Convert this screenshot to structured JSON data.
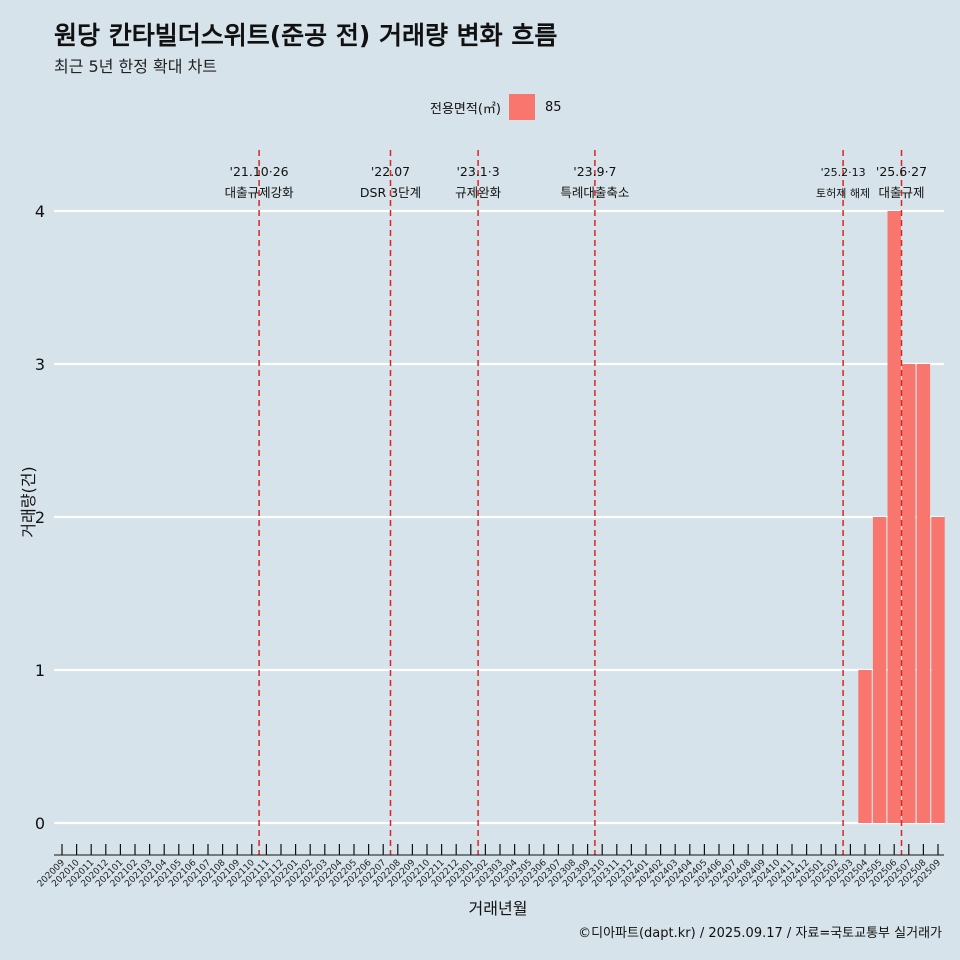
{
  "header": {
    "title": "원당 칸타빌더스위트(준공 전) 거래량 변화 흐름",
    "subtitle": "최근 5년 한정 확대 차트"
  },
  "legend": {
    "title": "전용면적(㎡)",
    "entry": "85",
    "color": "#f8766d"
  },
  "footer": {
    "credit": "©디아파트(dapt.kr) / 2025.09.17 / 자료=국토교통부 실거래가"
  },
  "chart_data": {
    "type": "bar",
    "title": "원당 칸타빌더스위트(준공 전) 거래량 변화 흐름",
    "xlabel": "거래년월",
    "ylabel": "거래량(건)",
    "ylim": [
      0,
      4
    ],
    "yticks": [
      0,
      1,
      2,
      3,
      4
    ],
    "grid": true,
    "legend_position": "top",
    "series_name": "85",
    "bar_color": "#f8766d",
    "categories": [
      "202009",
      "202010",
      "202011",
      "202012",
      "202101",
      "202102",
      "202103",
      "202104",
      "202105",
      "202106",
      "202107",
      "202108",
      "202109",
      "202110",
      "202111",
      "202112",
      "202201",
      "202202",
      "202203",
      "202204",
      "202205",
      "202206",
      "202207",
      "202208",
      "202209",
      "202210",
      "202211",
      "202212",
      "202301",
      "202302",
      "202303",
      "202304",
      "202305",
      "202306",
      "202307",
      "202308",
      "202309",
      "202310",
      "202311",
      "202312",
      "202401",
      "202402",
      "202403",
      "202404",
      "202405",
      "202406",
      "202407",
      "202408",
      "202409",
      "202410",
      "202411",
      "202412",
      "202501",
      "202502",
      "202503",
      "202504",
      "202505",
      "202506",
      "202507",
      "202508",
      "202509"
    ],
    "bars": [
      {
        "month": "202504",
        "value": 1
      },
      {
        "month": "202505",
        "value": 2
      },
      {
        "month": "202506",
        "value": 4
      },
      {
        "month": "202507",
        "value": 3
      },
      {
        "month": "202508",
        "value": 3
      },
      {
        "month": "202509",
        "value": 2
      }
    ],
    "events": [
      {
        "month_index": 13.5,
        "date": "'21.10·26",
        "label": "대출규제강화",
        "size": "large"
      },
      {
        "month_index": 22.5,
        "date": "'22.07",
        "label": "DSR 3단계",
        "size": "large"
      },
      {
        "month_index": 28.5,
        "date": "'23.1·3",
        "label": "규제완화",
        "size": "large"
      },
      {
        "month_index": 36.5,
        "date": "'23.9·7",
        "label": "특례대출축소",
        "size": "large"
      },
      {
        "month_index": 53.5,
        "date": "'25.2·13",
        "label": "토허제 해제",
        "size": "small"
      },
      {
        "month_index": 57.5,
        "date": "'25.6·27",
        "label": "대출규제",
        "size": "large"
      }
    ]
  }
}
